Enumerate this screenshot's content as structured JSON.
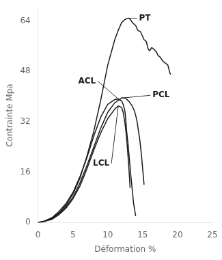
{
  "chart_data": {
    "type": "line",
    "xlabel": "Déformation %",
    "ylabel": "Contrainte Mpa",
    "xlim": [
      0,
      25
    ],
    "ylim": [
      0,
      68
    ],
    "xticks": [
      0,
      5,
      10,
      15,
      20,
      25
    ],
    "yticks": [
      0,
      16,
      32,
      48,
      64
    ],
    "grid": false,
    "annotations": [
      "PT",
      "ACL",
      "LCL",
      "PCL"
    ],
    "series": [
      {
        "name": "PT",
        "color": "#1a1a1a",
        "x": [
          0,
          0.5,
          1.0,
          2.0,
          3.0,
          4.0,
          5.0,
          6.0,
          7.0,
          8.0,
          9.0,
          10.0,
          11.0,
          11.5,
          12.0,
          12.5,
          13.0,
          13.2,
          13.5,
          14.0,
          14.3,
          14.7,
          15.0,
          15.2,
          15.5,
          15.8,
          16.0,
          16.3,
          16.6,
          17.0,
          17.2,
          17.5,
          17.8,
          18.0,
          18.3,
          18.6,
          18.9,
          19.0
        ],
        "values": [
          0,
          0.2,
          0.5,
          1.5,
          3.0,
          5.5,
          9.0,
          14.0,
          21.0,
          29.0,
          39.0,
          50.0,
          58.0,
          61.0,
          63.5,
          64.5,
          64.8,
          64.5,
          63.5,
          62.5,
          61.0,
          60.5,
          59.0,
          58.0,
          57.5,
          55.0,
          54.5,
          55.5,
          55.0,
          54.0,
          53.0,
          52.5,
          51.5,
          51.0,
          50.5,
          50.0,
          47.5,
          47.0
        ]
      },
      {
        "name": "ACL",
        "color": "#1a1a1a",
        "x": [
          0,
          0.5,
          1.0,
          2.0,
          3.0,
          4.0,
          5.0,
          6.0,
          7.0,
          8.0,
          9.0,
          10.0,
          11.0,
          11.5,
          12.0,
          12.2,
          12.4,
          12.5,
          12.6,
          12.7,
          12.9,
          13.1,
          13.3,
          13.5,
          13.7,
          14.0
        ],
        "values": [
          0,
          0.2,
          0.5,
          1.5,
          3.5,
          6.0,
          9.5,
          14.5,
          20.5,
          27.5,
          33.5,
          37.5,
          39.0,
          39.2,
          38.5,
          37.5,
          36.0,
          34.5,
          32.0,
          29.0,
          25.0,
          20.0,
          15.0,
          10.5,
          6.0,
          2.0
        ]
      },
      {
        "name": "PCL",
        "color": "#1a1a1a",
        "x": [
          0,
          0.5,
          1.0,
          2.0,
          3.0,
          4.0,
          5.0,
          6.0,
          7.0,
          8.0,
          9.0,
          10.0,
          11.0,
          12.0,
          12.5,
          13.0,
          13.5,
          13.8,
          14.0,
          14.2,
          14.4,
          14.6,
          14.8,
          15.0,
          15.2
        ],
        "values": [
          0,
          0.2,
          0.4,
          1.2,
          2.8,
          5.0,
          8.0,
          12.5,
          18.0,
          24.0,
          30.0,
          35.0,
          38.0,
          39.5,
          39.5,
          38.5,
          37.0,
          35.5,
          34.0,
          32.0,
          29.0,
          26.0,
          22.0,
          17.0,
          12.0
        ]
      },
      {
        "name": "LCL",
        "color": "#1a1a1a",
        "x": [
          0,
          0.5,
          1.0,
          2.0,
          3.0,
          4.0,
          5.0,
          6.0,
          7.0,
          8.0,
          9.0,
          10.0,
          11.0,
          11.5,
          12.0,
          12.2,
          12.4,
          12.6,
          12.8,
          13.0,
          13.2
        ],
        "values": [
          0,
          0.15,
          0.4,
          1.0,
          2.5,
          4.5,
          7.5,
          11.5,
          17.0,
          23.0,
          28.5,
          33.0,
          36.0,
          37.0,
          36.5,
          35.0,
          32.5,
          29.0,
          24.0,
          18.0,
          11.0
        ]
      }
    ]
  }
}
